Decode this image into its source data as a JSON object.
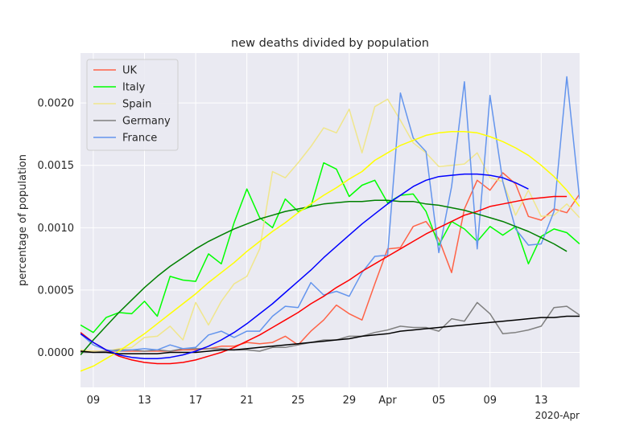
{
  "chart_data": {
    "type": "line",
    "title": "new deaths divided by population",
    "xlabel": "",
    "ylabel": "percentage of population",
    "x_offset_label": "2020-Apr",
    "x_dates": [
      "2020-03-08",
      "2020-03-09",
      "2020-03-10",
      "2020-03-11",
      "2020-03-12",
      "2020-03-13",
      "2020-03-14",
      "2020-03-15",
      "2020-03-16",
      "2020-03-17",
      "2020-03-18",
      "2020-03-19",
      "2020-03-20",
      "2020-03-21",
      "2020-03-22",
      "2020-03-23",
      "2020-03-24",
      "2020-03-25",
      "2020-03-26",
      "2020-03-27",
      "2020-03-28",
      "2020-03-29",
      "2020-03-30",
      "2020-03-31",
      "2020-04-01",
      "2020-04-02",
      "2020-04-03",
      "2020-04-04",
      "2020-04-05",
      "2020-04-06",
      "2020-04-07",
      "2020-04-08",
      "2020-04-09",
      "2020-04-10",
      "2020-04-11",
      "2020-04-12",
      "2020-04-13",
      "2020-04-14",
      "2020-04-15",
      "2020-04-16"
    ],
    "xlim": [
      "2020-03-08",
      "2020-04-16"
    ],
    "x_ticks": [
      {
        "date": "2020-03-09",
        "label": "09"
      },
      {
        "date": "2020-03-13",
        "label": "13"
      },
      {
        "date": "2020-03-17",
        "label": "17"
      },
      {
        "date": "2020-03-21",
        "label": "21"
      },
      {
        "date": "2020-03-25",
        "label": "25"
      },
      {
        "date": "2020-03-29",
        "label": "29"
      },
      {
        "date": "2020-04-01",
        "label": "Apr"
      },
      {
        "date": "2020-04-05",
        "label": "05"
      },
      {
        "date": "2020-04-09",
        "label": "09"
      },
      {
        "date": "2020-04-13",
        "label": "13"
      }
    ],
    "ylim": [
      -0.00028,
      0.0024
    ],
    "y_ticks": [
      {
        "value": 0.0,
        "label": "0.0000"
      },
      {
        "value": 0.0005,
        "label": "0.0005"
      },
      {
        "value": 0.001,
        "label": "0.0010"
      },
      {
        "value": 0.0015,
        "label": "0.0015"
      },
      {
        "value": 0.002,
        "label": "0.0020"
      }
    ],
    "grid": true,
    "legend_position": "upper-left",
    "series": [
      {
        "name": "UK",
        "color": "#ff6347",
        "start": "2020-03-08",
        "values": [
          1e-05,
          1e-05,
          1e-05,
          1e-05,
          1e-05,
          1e-05,
          1e-05,
          1e-05,
          2e-05,
          2e-05,
          3e-05,
          5e-05,
          5e-05,
          8e-05,
          7e-05,
          8e-05,
          0.00013,
          6e-05,
          0.00017,
          0.00026,
          0.00038,
          0.00031,
          0.00026,
          0.00055,
          0.00083,
          0.00084,
          0.00101,
          0.00105,
          0.00091,
          0.00064,
          0.00115,
          0.00138,
          0.0013,
          0.00144,
          0.00135,
          0.00109,
          0.00106,
          0.00115,
          0.00112,
          0.00127
        ]
      },
      {
        "name": "Italy",
        "color": "#00ff00",
        "start": "2020-03-08",
        "values": [
          0.00022,
          0.00016,
          0.00028,
          0.00032,
          0.00031,
          0.00041,
          0.00029,
          0.00061,
          0.00058,
          0.00057,
          0.00079,
          0.00071,
          0.00104,
          0.00131,
          0.00108,
          0.001,
          0.00123,
          0.00113,
          0.00117,
          0.00152,
          0.00147,
          0.00125,
          0.00134,
          0.00138,
          0.0012,
          0.00126,
          0.00127,
          0.00113,
          0.00086,
          0.00105,
          0.00099,
          0.00089,
          0.00101,
          0.00094,
          0.00101,
          0.00071,
          0.00093,
          0.00099,
          0.00096,
          0.00087
        ]
      },
      {
        "name": "Spain",
        "color": "#f0e68c",
        "start": "2020-03-08",
        "values": [
          2e-05,
          1e-05,
          1e-05,
          3e-05,
          4e-05,
          0.00012,
          0.00013,
          0.00021,
          0.0001,
          0.0004,
          0.00022,
          0.00041,
          0.00055,
          0.00061,
          0.00083,
          0.00145,
          0.0014,
          0.00152,
          0.00165,
          0.0018,
          0.00176,
          0.00195,
          0.0016,
          0.00197,
          0.00203,
          0.00186,
          0.00168,
          0.0016,
          0.00149,
          0.0015,
          0.00151,
          0.0016,
          0.0014,
          0.00137,
          0.0011,
          0.0013,
          0.00109,
          0.0011,
          0.00119,
          0.00108
        ]
      },
      {
        "name": "Germany",
        "color": "#808080",
        "start": "2020-03-08",
        "values": [
          0.0,
          0.0,
          1e-05,
          2e-05,
          2e-05,
          1e-05,
          2e-05,
          1e-05,
          3e-05,
          3e-05,
          3e-05,
          3e-05,
          2e-05,
          2e-05,
          1e-05,
          4e-05,
          4e-05,
          6e-05,
          8e-05,
          0.0001,
          0.0001,
          0.00013,
          0.00013,
          0.00016,
          0.00018,
          0.00021,
          0.0002,
          0.0002,
          0.00017,
          0.00027,
          0.00025,
          0.0004,
          0.00031,
          0.00015,
          0.00016,
          0.00018,
          0.00021,
          0.00036,
          0.00037,
          0.0003
        ]
      },
      {
        "name": "France",
        "color": "#6495ed",
        "start": "2020-03-08",
        "values": [
          0.00015,
          6e-05,
          2e-05,
          1e-05,
          2e-05,
          3e-05,
          2e-05,
          6e-05,
          3e-05,
          4e-05,
          0.00014,
          0.00017,
          0.00012,
          0.00017,
          0.00017,
          0.00029,
          0.00037,
          0.00036,
          0.00056,
          0.00046,
          0.00049,
          0.00045,
          0.00064,
          0.00077,
          0.00078,
          0.00208,
          0.00172,
          0.00161,
          0.0008,
          0.00133,
          0.00217,
          0.00083,
          0.00206,
          0.00137,
          0.00099,
          0.00086,
          0.00087,
          0.00113,
          0.00221,
          0.00123
        ]
      }
    ],
    "trend_lines": [
      {
        "for": "UK",
        "color": "#ff0000",
        "start": "2020-03-08",
        "values": [
          0.00016,
          8e-05,
          2e-05,
          -3e-05,
          -6e-05,
          -8e-05,
          -9e-05,
          -9e-05,
          -8e-05,
          -6e-05,
          -3e-05,
          0.0,
          4e-05,
          9e-05,
          0.00014,
          0.0002,
          0.00026,
          0.00032,
          0.00039,
          0.00045,
          0.00052,
          0.00058,
          0.00065,
          0.00071,
          0.00077,
          0.00083,
          0.00089,
          0.00095,
          0.001,
          0.00105,
          0.0011,
          0.00113,
          0.00117,
          0.00119,
          0.00121,
          0.00123,
          0.00124,
          0.00125,
          0.00125
        ]
      },
      {
        "for": "Italy",
        "color": "#008000",
        "start": "2020-03-08",
        "values": [
          -2e-05,
          0.0001,
          0.00021,
          0.00032,
          0.00042,
          0.00052,
          0.00061,
          0.00069,
          0.00076,
          0.00083,
          0.00089,
          0.00094,
          0.00099,
          0.00103,
          0.00107,
          0.0011,
          0.00113,
          0.00115,
          0.00117,
          0.00119,
          0.0012,
          0.00121,
          0.00121,
          0.00122,
          0.00122,
          0.00121,
          0.00121,
          0.00119,
          0.00118,
          0.00116,
          0.00114,
          0.00111,
          0.00108,
          0.00105,
          0.00101,
          0.00097,
          0.00092,
          0.00087,
          0.00081
        ]
      },
      {
        "for": "Spain",
        "color": "#ffff00",
        "start": "2020-03-08",
        "values": [
          -0.00015,
          -0.00011,
          -5e-05,
          1e-05,
          8e-05,
          0.00015,
          0.00023,
          0.00031,
          0.00039,
          0.00047,
          0.00056,
          0.00064,
          0.00072,
          0.00081,
          0.00089,
          0.00097,
          0.00104,
          0.00112,
          0.00119,
          0.00126,
          0.00132,
          0.00139,
          0.00145,
          0.00154,
          0.0016,
          0.00166,
          0.0017,
          0.00174,
          0.00176,
          0.00177,
          0.00177,
          0.00176,
          0.00173,
          0.00169,
          0.00164,
          0.00158,
          0.0015,
          0.00141,
          0.0013,
          0.00117
        ]
      },
      {
        "for": "Germany",
        "color": "#000000",
        "start": "2020-03-08",
        "values": [
          1e-05,
          0.0,
          0.0,
          -1e-05,
          -1e-05,
          -1e-05,
          -1e-05,
          0.0,
          0.0,
          0.0,
          1e-05,
          2e-05,
          2e-05,
          3e-05,
          4e-05,
          5e-05,
          6e-05,
          7e-05,
          8e-05,
          9e-05,
          0.0001,
          0.00011,
          0.00013,
          0.00014,
          0.00015,
          0.00017,
          0.00018,
          0.00019,
          0.0002,
          0.00021,
          0.00022,
          0.00023,
          0.00024,
          0.00025,
          0.00026,
          0.00027,
          0.00028,
          0.00028,
          0.00029,
          0.00029
        ]
      },
      {
        "for": "France",
        "color": "#0000ff",
        "start": "2020-03-08",
        "values": [
          0.00015,
          8e-05,
          2e-05,
          -2e-05,
          -4e-05,
          -5e-05,
          -5e-05,
          -4e-05,
          -2e-05,
          1e-05,
          5e-05,
          0.0001,
          0.00016,
          0.00023,
          0.00031,
          0.00039,
          0.00048,
          0.00057,
          0.00066,
          0.00076,
          0.00085,
          0.00094,
          0.00103,
          0.00111,
          0.00119,
          0.00126,
          0.00133,
          0.00138,
          0.00141,
          0.00142,
          0.00143,
          0.00143,
          0.00142,
          0.0014,
          0.00136,
          0.00131
        ]
      }
    ]
  }
}
